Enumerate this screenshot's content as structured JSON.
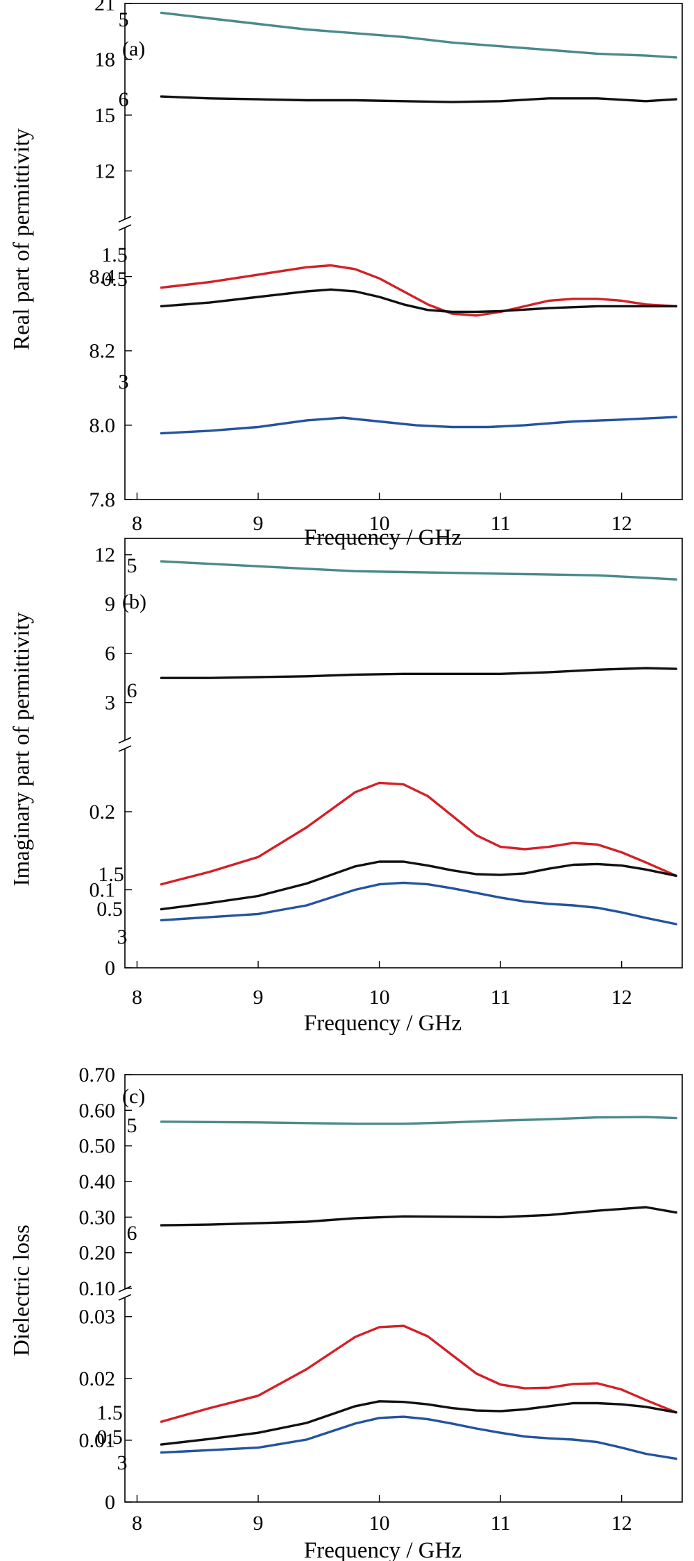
{
  "colors": {
    "teal": "#4b8a8c",
    "black": "#111111",
    "red": "#d42027",
    "blue": "#2453a0"
  },
  "chart_data": [
    {
      "type": "line",
      "panel_label": "(a)",
      "xlabel": "Frequency / GHz",
      "ylabel": "Real part of permittivity",
      "xlim": [
        7.9,
        12.5
      ],
      "x_ticks": [
        "8",
        "9",
        "10",
        "11",
        "12"
      ],
      "broken_y_axis": true,
      "upper": {
        "ylim": [
          10,
          21
        ],
        "ticks": [
          "12",
          "15",
          "18",
          "21"
        ]
      },
      "lower": {
        "ylim": [
          7.8,
          8.5
        ],
        "ticks": [
          "7.8",
          "8.0",
          "8.2",
          "8.4"
        ]
      },
      "series": [
        {
          "name": "5",
          "segment": "upper",
          "color_key": "teal",
          "x": [
            8.2,
            8.6,
            9.0,
            9.4,
            9.8,
            10.2,
            10.6,
            11.0,
            11.4,
            11.8,
            12.2,
            12.45
          ],
          "y": [
            20.5,
            20.2,
            19.9,
            19.6,
            19.4,
            19.2,
            18.9,
            18.7,
            18.5,
            18.3,
            18.2,
            18.1
          ]
        },
        {
          "name": "6",
          "segment": "upper",
          "color_key": "black",
          "x": [
            8.2,
            8.6,
            9.0,
            9.4,
            9.8,
            10.2,
            10.6,
            11.0,
            11.4,
            11.8,
            12.2,
            12.45
          ],
          "y": [
            16.0,
            15.9,
            15.85,
            15.8,
            15.8,
            15.75,
            15.7,
            15.75,
            15.9,
            15.9,
            15.75,
            15.85
          ]
        },
        {
          "name": "1.5",
          "segment": "lower",
          "color_key": "red",
          "x": [
            8.2,
            8.6,
            9.0,
            9.4,
            9.6,
            9.8,
            10.0,
            10.2,
            10.4,
            10.6,
            10.8,
            11.0,
            11.2,
            11.4,
            11.6,
            11.8,
            12.0,
            12.2,
            12.45
          ],
          "y": [
            8.37,
            8.385,
            8.405,
            8.425,
            8.43,
            8.42,
            8.395,
            8.36,
            8.325,
            8.3,
            8.295,
            8.305,
            8.32,
            8.335,
            8.34,
            8.34,
            8.335,
            8.325,
            8.32
          ]
        },
        {
          "name": "0.5",
          "segment": "lower",
          "color_key": "black",
          "x": [
            8.2,
            8.6,
            9.0,
            9.4,
            9.6,
            9.8,
            10.0,
            10.2,
            10.4,
            10.6,
            10.8,
            11.0,
            11.4,
            11.8,
            12.2,
            12.45
          ],
          "y": [
            8.32,
            8.33,
            8.345,
            8.36,
            8.365,
            8.36,
            8.345,
            8.325,
            8.31,
            8.305,
            8.305,
            8.307,
            8.315,
            8.32,
            8.32,
            8.32
          ]
        },
        {
          "name": "3",
          "segment": "lower",
          "color_key": "blue",
          "x": [
            8.2,
            8.6,
            9.0,
            9.4,
            9.7,
            10.0,
            10.3,
            10.6,
            10.9,
            11.2,
            11.6,
            12.0,
            12.45
          ],
          "y": [
            7.978,
            7.985,
            7.995,
            8.013,
            8.02,
            8.01,
            8.0,
            7.995,
            7.995,
            8.0,
            8.01,
            8.015,
            8.022
          ]
        }
      ]
    },
    {
      "type": "line",
      "panel_label": "(b)",
      "xlabel": "Frequency / GHz",
      "ylabel": "Imaginary part of permittivity",
      "xlim": [
        7.9,
        12.5
      ],
      "x_ticks": [
        "8",
        "9",
        "10",
        "11",
        "12"
      ],
      "broken_y_axis": true,
      "upper": {
        "ylim": [
          1,
          13
        ],
        "ticks": [
          "3",
          "6",
          "9",
          "12"
        ]
      },
      "lower": {
        "ylim": [
          0,
          0.28
        ],
        "ticks": [
          "0",
          "0.1",
          "0.2"
        ]
      },
      "series": [
        {
          "name": "5",
          "segment": "upper",
          "color_key": "teal",
          "x": [
            8.2,
            8.6,
            9.0,
            9.4,
            9.8,
            10.2,
            10.6,
            11.0,
            11.4,
            11.8,
            12.2,
            12.45
          ],
          "y": [
            11.6,
            11.45,
            11.3,
            11.15,
            11.0,
            10.95,
            10.9,
            10.85,
            10.8,
            10.75,
            10.6,
            10.5
          ]
        },
        {
          "name": "6",
          "segment": "upper",
          "color_key": "black",
          "x": [
            8.2,
            8.6,
            9.0,
            9.4,
            9.8,
            10.2,
            10.6,
            11.0,
            11.4,
            11.8,
            12.2,
            12.45
          ],
          "y": [
            4.5,
            4.5,
            4.55,
            4.6,
            4.7,
            4.75,
            4.75,
            4.75,
            4.85,
            5.0,
            5.1,
            5.05
          ]
        },
        {
          "name": "1.5",
          "segment": "lower",
          "color_key": "red",
          "x": [
            8.2,
            8.6,
            9.0,
            9.4,
            9.8,
            10.0,
            10.2,
            10.4,
            10.6,
            10.8,
            11.0,
            11.2,
            11.4,
            11.6,
            11.8,
            12.0,
            12.2,
            12.45
          ],
          "y": [
            0.107,
            0.123,
            0.142,
            0.18,
            0.225,
            0.237,
            0.235,
            0.22,
            0.195,
            0.17,
            0.155,
            0.152,
            0.155,
            0.16,
            0.158,
            0.148,
            0.135,
            0.118
          ]
        },
        {
          "name": "0.5",
          "segment": "lower",
          "color_key": "black",
          "x": [
            8.2,
            8.6,
            9.0,
            9.4,
            9.8,
            10.0,
            10.2,
            10.4,
            10.6,
            10.8,
            11.0,
            11.2,
            11.4,
            11.6,
            11.8,
            12.0,
            12.2,
            12.45
          ],
          "y": [
            0.075,
            0.083,
            0.092,
            0.108,
            0.13,
            0.136,
            0.136,
            0.131,
            0.125,
            0.12,
            0.119,
            0.121,
            0.127,
            0.132,
            0.133,
            0.131,
            0.126,
            0.118
          ]
        },
        {
          "name": "3",
          "segment": "lower",
          "color_key": "blue",
          "x": [
            8.2,
            8.6,
            9.0,
            9.4,
            9.8,
            10.0,
            10.2,
            10.4,
            10.6,
            10.8,
            11.0,
            11.2,
            11.4,
            11.6,
            11.8,
            12.0,
            12.2,
            12.45
          ],
          "y": [
            0.061,
            0.065,
            0.069,
            0.08,
            0.1,
            0.107,
            0.109,
            0.107,
            0.102,
            0.096,
            0.09,
            0.085,
            0.082,
            0.08,
            0.077,
            0.071,
            0.064,
            0.056
          ]
        }
      ]
    },
    {
      "type": "line",
      "panel_label": "(c)",
      "xlabel": "Frequency / GHz",
      "ylabel": "Dielectric loss",
      "xlim": [
        7.9,
        12.5
      ],
      "x_ticks": [
        "8",
        "9",
        "10",
        "11",
        "12"
      ],
      "broken_y_axis": true,
      "upper": {
        "ylim": [
          0.1,
          0.7
        ],
        "ticks": [
          "0.10",
          "0.20",
          "0.30",
          "0.40",
          "0.50",
          "0.60",
          "0.70"
        ]
      },
      "lower": {
        "ylim": [
          0,
          0.033
        ],
        "ticks": [
          "0",
          "0.01",
          "0.02",
          "0.03"
        ]
      },
      "series": [
        {
          "name": "5",
          "segment": "upper",
          "color_key": "teal",
          "x": [
            8.2,
            8.6,
            9.0,
            9.4,
            9.8,
            10.2,
            10.6,
            11.0,
            11.4,
            11.8,
            12.2,
            12.45
          ],
          "y": [
            0.568,
            0.567,
            0.566,
            0.564,
            0.562,
            0.562,
            0.566,
            0.571,
            0.575,
            0.58,
            0.581,
            0.578
          ]
        },
        {
          "name": "6",
          "segment": "upper",
          "color_key": "black",
          "x": [
            8.2,
            8.6,
            9.0,
            9.4,
            9.8,
            10.2,
            10.6,
            11.0,
            11.4,
            11.8,
            12.2,
            12.45
          ],
          "y": [
            0.277,
            0.279,
            0.283,
            0.287,
            0.297,
            0.302,
            0.301,
            0.3,
            0.306,
            0.318,
            0.328,
            0.313
          ]
        },
        {
          "name": "1.5",
          "segment": "lower",
          "color_key": "red",
          "x": [
            8.2,
            8.6,
            9.0,
            9.4,
            9.8,
            10.0,
            10.2,
            10.4,
            10.6,
            10.8,
            11.0,
            11.2,
            11.4,
            11.6,
            11.8,
            12.0,
            12.2,
            12.45
          ],
          "y": [
            0.013,
            0.0152,
            0.0172,
            0.0215,
            0.0267,
            0.0283,
            0.0285,
            0.0268,
            0.0238,
            0.0208,
            0.019,
            0.0184,
            0.0185,
            0.0191,
            0.0192,
            0.0182,
            0.0165,
            0.0145
          ]
        },
        {
          "name": "0.5",
          "segment": "lower",
          "color_key": "black",
          "x": [
            8.2,
            8.6,
            9.0,
            9.4,
            9.8,
            10.0,
            10.2,
            10.4,
            10.6,
            10.8,
            11.0,
            11.2,
            11.4,
            11.6,
            11.8,
            12.0,
            12.2,
            12.45
          ],
          "y": [
            0.0093,
            0.0102,
            0.0112,
            0.0128,
            0.0155,
            0.0163,
            0.0162,
            0.0158,
            0.0152,
            0.0148,
            0.0147,
            0.015,
            0.0155,
            0.016,
            0.016,
            0.0158,
            0.0154,
            0.0145
          ]
        },
        {
          "name": "3",
          "segment": "lower",
          "color_key": "blue",
          "x": [
            8.2,
            8.6,
            9.0,
            9.4,
            9.8,
            10.0,
            10.2,
            10.4,
            10.6,
            10.8,
            11.0,
            11.2,
            11.4,
            11.6,
            11.8,
            12.0,
            12.2,
            12.45
          ],
          "y": [
            0.008,
            0.0084,
            0.0088,
            0.0101,
            0.0127,
            0.0136,
            0.0138,
            0.0134,
            0.0127,
            0.0119,
            0.0112,
            0.0106,
            0.0103,
            0.0101,
            0.0097,
            0.0088,
            0.0078,
            0.007
          ]
        }
      ]
    }
  ]
}
